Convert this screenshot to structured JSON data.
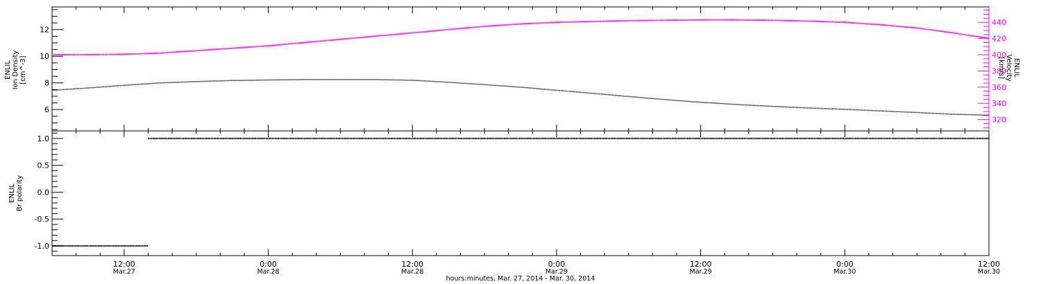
{
  "colors": {
    "velocity": "#ff00ff",
    "density": "#000000",
    "polarity": "#000000",
    "axis": "#000000"
  },
  "chart_data": [
    {
      "type": "line",
      "panel": "top",
      "title": "",
      "xlabel": "hours:minutes, Mar. 27, 2014 - Mar. 30, 2014",
      "x_ticks": [
        {
          "time": "12:00",
          "date": "Mar.27"
        },
        {
          "time": "0:00",
          "date": "Mar.28"
        },
        {
          "time": "12:00",
          "date": "Mar.28"
        },
        {
          "time": "0:00",
          "date": "Mar.29"
        },
        {
          "time": "12:00",
          "date": "Mar.29"
        },
        {
          "time": "0:00",
          "date": "Mar.30"
        },
        {
          "time": "12:00",
          "date": "Mar.30"
        }
      ],
      "x_hours_range": [
        -6,
        72
      ],
      "grid": false,
      "left_axis": {
        "label_lines": [
          "ENLIL",
          "Ion Density",
          "[cm^-3]"
        ],
        "ylim": [
          4.4,
          13.7
        ],
        "ticks": [
          6,
          8,
          10,
          12
        ],
        "minor_step": 0.5
      },
      "right_axis": {
        "label_lines": [
          "ENLIL",
          "Velocity",
          "[km/s]"
        ],
        "ylim": [
          306,
          459
        ],
        "ticks": [
          320,
          340,
          360,
          380,
          400,
          420,
          440
        ],
        "minor_step": 5
      },
      "series": [
        {
          "axis": "left",
          "hours": [
            -6,
            -3,
            0,
            3,
            6,
            9,
            12,
            15,
            18,
            21,
            24,
            27,
            30,
            33,
            36,
            39,
            42,
            45,
            48,
            51,
            54,
            57,
            60,
            63,
            66,
            69,
            72
          ],
          "values": [
            7.45,
            7.62,
            7.82,
            8.0,
            8.1,
            8.18,
            8.22,
            8.25,
            8.25,
            8.25,
            8.2,
            8.05,
            7.87,
            7.68,
            7.45,
            7.22,
            6.98,
            6.75,
            6.55,
            6.38,
            6.24,
            6.12,
            6.02,
            5.9,
            5.78,
            5.65,
            5.58
          ]
        },
        {
          "axis": "right",
          "hours": [
            -6,
            -3,
            0,
            3,
            6,
            9,
            12,
            15,
            18,
            21,
            24,
            27,
            30,
            33,
            36,
            39,
            42,
            45,
            48,
            51,
            54,
            57,
            60,
            63,
            66,
            69,
            72
          ],
          "values": [
            400,
            400,
            400.5,
            402,
            405,
            408,
            411,
            415,
            419,
            423,
            427,
            431,
            435,
            438,
            440,
            441,
            442,
            442.5,
            443,
            443,
            442.5,
            441.5,
            440,
            437,
            433,
            427,
            420
          ]
        }
      ]
    },
    {
      "type": "line",
      "panel": "bottom",
      "title": "",
      "grid": false,
      "left_axis": {
        "label_lines": [
          "ENLIL",
          "Br polarity"
        ],
        "ylim": [
          -1.18,
          1.14
        ],
        "ticks": [
          -1.0,
          -0.5,
          0.0,
          0.5,
          1.0
        ],
        "tick_labels": [
          "-1.0",
          "-0.5",
          "0.0",
          "0.5",
          "1.0"
        ],
        "minor_step": 0.1
      },
      "series": [
        {
          "segments": [
            {
              "hours_start": -6,
              "hours_end": 2,
              "value": -1.0
            },
            {
              "hours_start": 2,
              "hours_end": 72,
              "value": 1.0
            }
          ]
        }
      ]
    }
  ]
}
